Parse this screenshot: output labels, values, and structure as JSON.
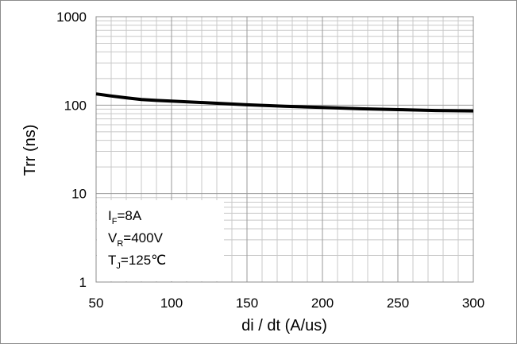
{
  "chart_data": {
    "type": "line",
    "xlabel": "di / dt (A/us)",
    "ylabel": "Trr (ns)",
    "xlim": [
      50,
      300
    ],
    "ylim": [
      1,
      1000
    ],
    "yscale": "log",
    "grid": true,
    "xticks": [
      "50",
      "100",
      "150",
      "200",
      "250",
      "300"
    ],
    "yticks": [
      "1",
      "10",
      "100",
      "1000"
    ],
    "series": [
      {
        "x": [
          50,
          60,
          70,
          80,
          90,
          100,
          125,
          150,
          175,
          200,
          225,
          250,
          275,
          300
        ],
        "y": [
          134,
          127,
          121,
          116,
          113,
          111,
          106,
          101,
          97,
          94,
          91,
          89,
          87,
          86
        ]
      }
    ],
    "annotation": {
      "line1": {
        "main": "I",
        "sub": "F",
        "rest": "=8A"
      },
      "line2": {
        "main": "V",
        "sub": "R",
        "rest": "=400V"
      },
      "line3": {
        "main": "T",
        "sub": "J",
        "rest": "=125℃"
      }
    }
  }
}
